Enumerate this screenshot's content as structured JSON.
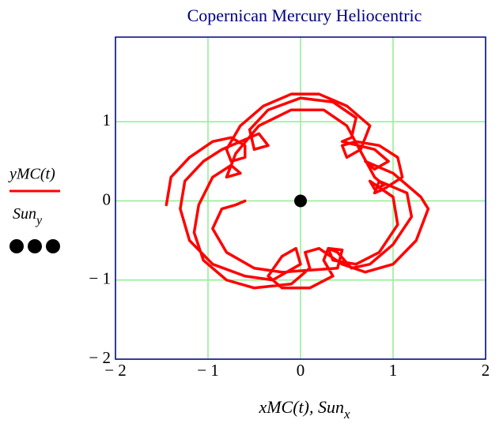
{
  "chart_data": {
    "type": "line",
    "title": "Copernican Mercury Heliocentric",
    "xlabel": "xMC(t), Sun",
    "xlabel_sub": "x",
    "xlim": [
      -2,
      2
    ],
    "ylim": [
      -2,
      2.07
    ],
    "xticks": [
      {
        "value": -2,
        "label": "− 2"
      },
      {
        "value": -1,
        "label": "− 1"
      },
      0,
      1,
      2
    ],
    "yticks": [
      {
        "value": -2,
        "label": "− 2"
      },
      {
        "value": -1,
        "label": "− 1"
      },
      0,
      1
    ],
    "grid": true,
    "grid_color": "#90ee90",
    "series": [
      {
        "name": "yMC(t)",
        "color": "#ff0000",
        "x": [
          -1.45,
          -1.4,
          -1.2,
          -0.95,
          -0.75,
          -0.6,
          -0.6,
          -0.75,
          -0.8,
          -0.65,
          -0.4,
          -0.1,
          0.2,
          0.5,
          0.75,
          0.65,
          0.5,
          0.45,
          0.6,
          0.85,
          1.05,
          1.1,
          0.9,
          0.8,
          0.85,
          1.15,
          1.2,
          1.0,
          0.75,
          0.55,
          0.4,
          0.3,
          0.25,
          0.35,
          0.1,
          -0.2,
          -0.35,
          -0.2,
          -0.05,
          0,
          -0.3,
          -0.6,
          -0.95,
          -1.2,
          -1.3,
          -1.25,
          -1.05,
          -0.85,
          -0.45,
          -0.35,
          -0.5,
          -0.55,
          -0.35,
          0,
          0.35,
          0.6,
          0.55,
          0.45,
          0.8,
          0.95,
          0.8,
          0.7,
          1.0,
          1.3,
          1.38,
          1.25,
          1.0,
          0.7,
          0.45,
          0.2,
          0.05,
          0.1,
          -0.1,
          -0.5,
          -0.8,
          -1.05,
          -1.15,
          -1.1,
          -0.95,
          -0.75,
          -0.65,
          -0.8,
          -0.7,
          -0.45,
          -0.1,
          0.25,
          0.5,
          0.8,
          0.9,
          0.8,
          0.75,
          1.0,
          1.05,
          0.85,
          0.6,
          0.35,
          0.3,
          0.45,
          0.4,
          -0.2,
          -0.5,
          -0.8,
          -0.95,
          -0.85,
          -0.7,
          -0.6
        ],
        "values": [
          -0.05,
          0.3,
          0.55,
          0.75,
          0.8,
          0.7,
          0.55,
          0.5,
          0.65,
          0.95,
          1.2,
          1.35,
          1.35,
          1.2,
          0.95,
          0.65,
          0.55,
          0.7,
          0.75,
          0.7,
          0.55,
          0.3,
          0.15,
          0.1,
          0.25,
          0.1,
          -0.2,
          -0.55,
          -0.8,
          -0.85,
          -0.65,
          -0.6,
          -0.75,
          -0.95,
          -1.1,
          -1.1,
          -0.95,
          -0.7,
          -0.6,
          -0.8,
          -1.0,
          -0.95,
          -0.8,
          -0.5,
          -0.1,
          0.25,
          0.5,
          0.65,
          0.85,
          0.7,
          0.65,
          0.9,
          1.15,
          1.3,
          1.25,
          1.05,
          0.8,
          0.75,
          0.65,
          0.5,
          0.4,
          0.5,
          0.35,
          0.05,
          -0.1,
          -0.5,
          -0.8,
          -0.9,
          -0.8,
          -0.6,
          -0.65,
          -0.85,
          -1.05,
          -1.1,
          -1.0,
          -0.75,
          -0.4,
          -0.05,
          0.3,
          0.45,
          0.35,
          0.3,
          0.6,
          0.95,
          1.15,
          1.15,
          0.95,
          0.3,
          0.2,
          0.15,
          0.25,
          0.05,
          -0.3,
          -0.65,
          -0.8,
          -0.75,
          -0.6,
          -0.62,
          -0.85,
          -0.9,
          -0.85,
          -0.65,
          -0.35,
          -0.1,
          -0.05,
          0.0
        ]
      },
      {
        "name": "Sun",
        "name_sub": "y",
        "color": "#000000",
        "x": [
          0
        ],
        "values": [
          0
        ]
      }
    ]
  }
}
